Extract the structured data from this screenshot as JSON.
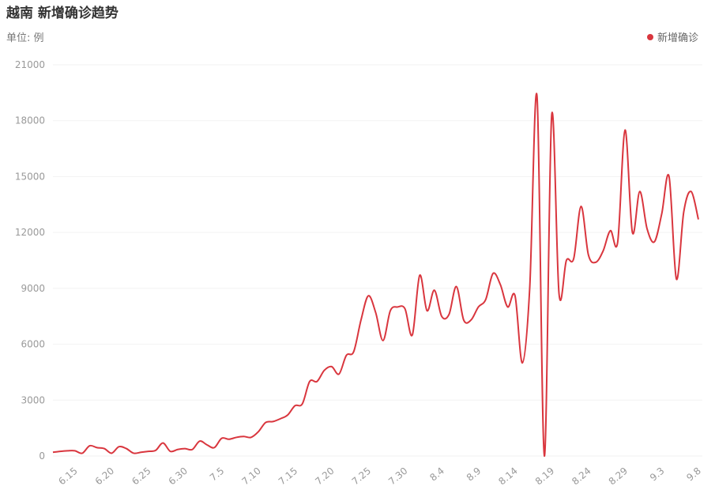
{
  "chart_data": {
    "type": "line",
    "title": "越南 新增确诊趋势",
    "subtitle": "单位: 例",
    "categories": [
      null,
      null,
      null,
      "6.15",
      null,
      null,
      null,
      null,
      "6.20",
      null,
      null,
      null,
      null,
      "6.25",
      null,
      null,
      null,
      null,
      "6.30",
      null,
      null,
      null,
      null,
      "7.5",
      null,
      null,
      null,
      null,
      "7.10",
      null,
      null,
      null,
      null,
      "7.15",
      null,
      null,
      null,
      null,
      "7.20",
      null,
      null,
      null,
      null,
      "7.25",
      null,
      null,
      null,
      null,
      "7.30",
      null,
      null,
      null,
      null,
      "8.4",
      null,
      null,
      null,
      null,
      "8.9",
      null,
      null,
      null,
      null,
      "8.14",
      null,
      null,
      null,
      null,
      "8.19",
      null,
      null,
      null,
      null,
      "8.24",
      null,
      null,
      null,
      null,
      "8.29",
      null,
      null,
      null,
      null,
      "9.3",
      null,
      null,
      null,
      null,
      "9.8"
    ],
    "series": [
      {
        "name": "新增确诊",
        "color": "#d9363e",
        "values": [
          200,
          250,
          280,
          280,
          150,
          550,
          450,
          400,
          150,
          500,
          400,
          150,
          200,
          250,
          300,
          700,
          250,
          350,
          400,
          350,
          800,
          600,
          450,
          950,
          900,
          1000,
          1050,
          1000,
          1300,
          1800,
          1850,
          2000,
          2200,
          2700,
          2800,
          4000,
          4000,
          4600,
          4800,
          4400,
          5400,
          5600,
          7300,
          8600,
          7700,
          6200,
          7800,
          8000,
          7900,
          6500,
          9700,
          7800,
          8900,
          7500,
          7600,
          9100,
          7300,
          7300,
          8000,
          8400,
          9800,
          9200,
          8000,
          8600,
          5000,
          9000,
          19300,
          0,
          18300,
          8700,
          10500,
          10600,
          13400,
          10800,
          10400,
          11000,
          12100,
          11500,
          17500,
          12000,
          14200,
          12200,
          11500,
          13000,
          15000,
          9500,
          13100,
          14200,
          12700
        ]
      }
    ],
    "ylim": [
      0,
      21000
    ],
    "yticks": [
      0,
      3000,
      6000,
      9000,
      12000,
      15000,
      18000,
      21000
    ],
    "grid": true,
    "legend": "top-right"
  }
}
